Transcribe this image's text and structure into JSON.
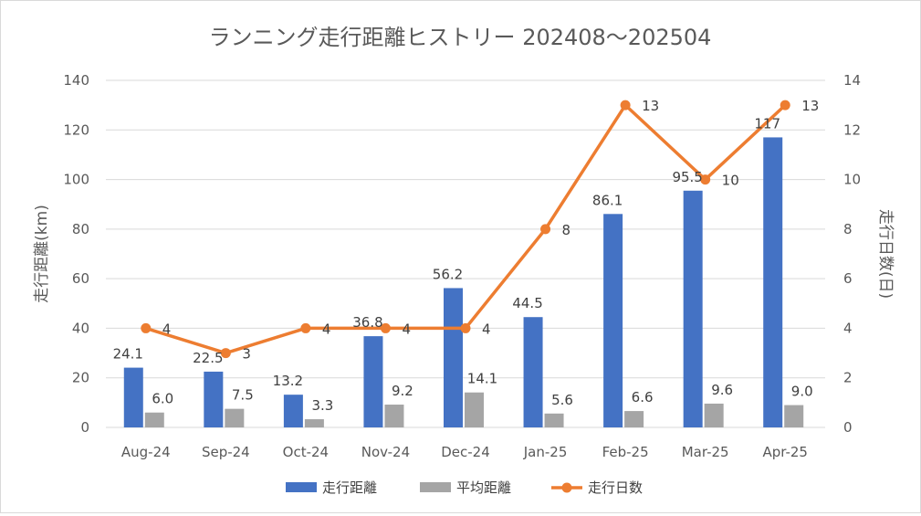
{
  "chart_data": {
    "type": "bar",
    "title": "ランニング走行距離ヒストリー 202408～202504",
    "categories": [
      "Aug-24",
      "Sep-24",
      "Oct-24",
      "Nov-24",
      "Dec-24",
      "Jan-25",
      "Feb-25",
      "Mar-25",
      "Apr-25"
    ],
    "ylabel": "走行距離(km)",
    "y2label": "走行日数(日)",
    "ylim": [
      0,
      140
    ],
    "y2lim": [
      0,
      14
    ],
    "yticks": [
      "0",
      "20",
      "40",
      "60",
      "80",
      "100",
      "120",
      "140"
    ],
    "y2ticks": [
      "0",
      "2",
      "4",
      "6",
      "8",
      "10",
      "12",
      "14"
    ],
    "grid": true,
    "legend_position": "bottom",
    "series": [
      {
        "name": "走行距離",
        "type": "bar",
        "axis": "left",
        "color": "#4472c4",
        "values": [
          24.1,
          22.5,
          13.2,
          36.8,
          56.2,
          44.5,
          86.1,
          95.5,
          117
        ],
        "labels": [
          "24.1",
          "22.5",
          "13.2",
          "36.8",
          "56.2",
          "44.5",
          "86.1",
          "95.5",
          "117"
        ]
      },
      {
        "name": "平均距離",
        "type": "bar",
        "axis": "left",
        "color": "#a5a5a5",
        "values": [
          6.0,
          7.5,
          3.3,
          9.2,
          14.1,
          5.6,
          6.6,
          9.6,
          9.0
        ],
        "labels": [
          "6.0",
          "7.5",
          "3.3",
          "9.2",
          "14.1",
          "5.6",
          "6.6",
          "9.6",
          "9.0"
        ]
      },
      {
        "name": "走行日数",
        "type": "line",
        "axis": "right",
        "color": "#ed7d31",
        "values": [
          4,
          3,
          4,
          4,
          4,
          8,
          13,
          10,
          13
        ],
        "labels": [
          "4",
          "3",
          "4",
          "4",
          "4",
          "8",
          "13",
          "10",
          "13"
        ]
      }
    ]
  }
}
